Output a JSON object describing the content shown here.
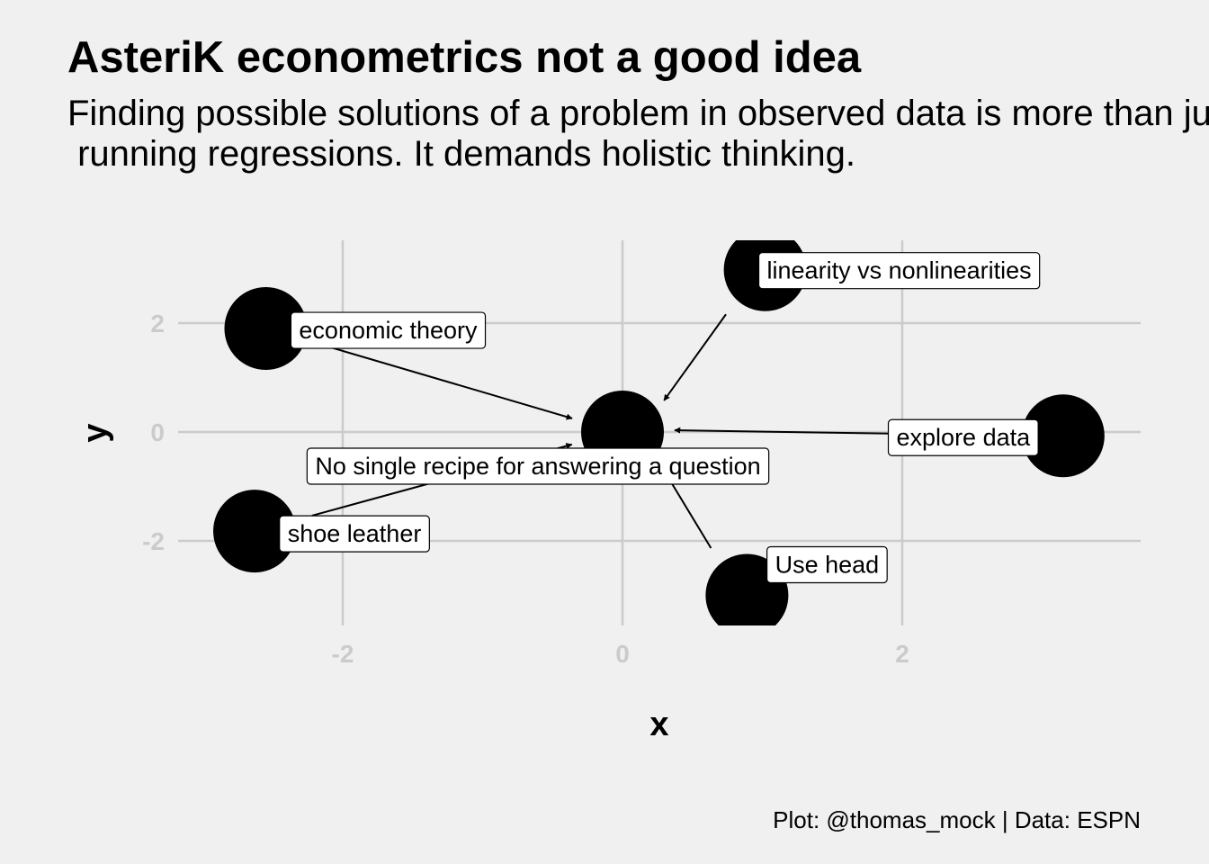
{
  "chart_data": {
    "type": "scatter",
    "title": "AsteriK econometrics not a good idea",
    "subtitle": "Finding possible solutions of a problem in observed data is more than just\n running regressions. It demands holistic thinking.",
    "caption": "Plot: @thomas_mock | Data: ESPN",
    "xlabel": "x",
    "ylabel": "y",
    "xlim": [
      -3.5,
      3.7
    ],
    "ylim": [
      -3.4,
      3.4
    ],
    "x_ticks": [
      -2,
      0,
      2
    ],
    "y_ticks": [
      -2,
      0,
      2
    ],
    "grid": true,
    "point_color": "#000000",
    "grid_color": "#cbcbcb",
    "center": {
      "x": 0,
      "y": 0
    },
    "points": [
      {
        "x": -2.55,
        "y": 1.9,
        "label": "economic theory"
      },
      {
        "x": 1.02,
        "y": 2.98,
        "label": "linearity vs nonlinearities"
      },
      {
        "x": 3.15,
        "y": -0.07,
        "label": "explore data"
      },
      {
        "x": -2.63,
        "y": -1.82,
        "label": "shoe leather"
      },
      {
        "x": 0.89,
        "y": -3.0,
        "label": "Use head"
      }
    ],
    "center_label": "No single recipe for answering a question"
  }
}
